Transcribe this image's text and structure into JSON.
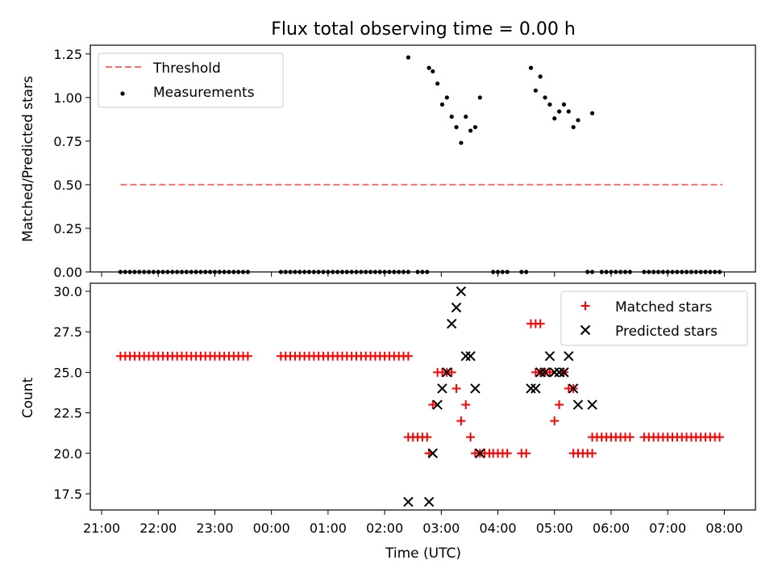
{
  "title": "Flux total observing time = 0.00 h",
  "colors": {
    "threshold": "#ff7070",
    "measurements": "#000000",
    "matched": "#ff0000",
    "predicted": "#000000"
  },
  "chart_data": [
    {
      "type": "scatter",
      "title": "Flux total observing time = 0.00 h",
      "ylabel": "Matched/Predicted stars",
      "xlabel": "",
      "xlim": [
        "21:00",
        "08:00"
      ],
      "ylim": [
        0,
        1.3
      ],
      "yticks": [
        "0.00",
        "0.25",
        "0.50",
        "0.75",
        "1.00",
        "1.25"
      ],
      "legend": {
        "placement": "top-left",
        "entries": [
          "Threshold",
          "Measurements"
        ]
      },
      "series": [
        {
          "name": "Threshold",
          "kind": "dashed-line",
          "x": [
            "21:20",
            "07:58"
          ],
          "y": [
            0.5,
            0.5
          ]
        },
        {
          "name": "Measurements",
          "kind": "scatter-dot",
          "zero_runs": [
            {
              "from": "21:20",
              "to": "23:35",
              "step_min": 5,
              "y": 0
            },
            {
              "from": "00:10",
              "to": "02:25",
              "step_min": 5,
              "y": 0
            },
            {
              "from": "02:35",
              "to": "02:45",
              "step_min": 5,
              "y": 0
            },
            {
              "from": "03:55",
              "to": "04:10",
              "step_min": 5,
              "y": 0
            },
            {
              "from": "04:25",
              "to": "04:30",
              "step_min": 5,
              "y": 0
            },
            {
              "from": "05:35",
              "to": "05:40",
              "step_min": 5,
              "y": 0
            },
            {
              "from": "05:50",
              "to": "06:20",
              "step_min": 5,
              "y": 0
            },
            {
              "from": "06:35",
              "to": "07:55",
              "step_min": 5,
              "y": 0
            }
          ],
          "points": [
            {
              "x": "02:25",
              "y": 1.23
            },
            {
              "x": "02:47",
              "y": 1.17
            },
            {
              "x": "02:51",
              "y": 1.15
            },
            {
              "x": "02:56",
              "y": 1.08
            },
            {
              "x": "03:01",
              "y": 0.96
            },
            {
              "x": "03:06",
              "y": 1.0
            },
            {
              "x": "03:11",
              "y": 0.89
            },
            {
              "x": "03:16",
              "y": 0.83
            },
            {
              "x": "03:21",
              "y": 0.74
            },
            {
              "x": "03:26",
              "y": 0.89
            },
            {
              "x": "03:31",
              "y": 0.81
            },
            {
              "x": "03:36",
              "y": 0.83
            },
            {
              "x": "03:41",
              "y": 1.0
            },
            {
              "x": "04:35",
              "y": 1.17
            },
            {
              "x": "04:40",
              "y": 1.04
            },
            {
              "x": "04:45",
              "y": 1.12
            },
            {
              "x": "04:50",
              "y": 1.0
            },
            {
              "x": "04:55",
              "y": 0.96
            },
            {
              "x": "05:00",
              "y": 0.88
            },
            {
              "x": "05:05",
              "y": 0.92
            },
            {
              "x": "05:10",
              "y": 0.96
            },
            {
              "x": "05:15",
              "y": 0.92
            },
            {
              "x": "05:20",
              "y": 0.83
            },
            {
              "x": "05:25",
              "y": 0.87
            },
            {
              "x": "05:40",
              "y": 0.91
            }
          ]
        }
      ]
    },
    {
      "type": "scatter",
      "title": "",
      "ylabel": "Count",
      "xlabel": "Time (UTC)",
      "xlim": [
        "21:00",
        "08:00"
      ],
      "ylim": [
        16.5,
        30.5
      ],
      "xticks": [
        "21:00",
        "22:00",
        "23:00",
        "00:00",
        "01:00",
        "02:00",
        "03:00",
        "04:00",
        "05:00",
        "06:00",
        "07:00",
        "08:00"
      ],
      "yticks": [
        "17.5",
        "20.0",
        "22.5",
        "25.0",
        "27.5",
        "30.0"
      ],
      "legend": {
        "placement": "top-right",
        "entries": [
          "Matched stars",
          "Predicted stars"
        ]
      },
      "series": [
        {
          "name": "Matched stars",
          "kind": "plus",
          "runs": [
            {
              "from": "21:20",
              "to": "23:35",
              "step_min": 5,
              "y": 26
            },
            {
              "from": "00:10",
              "to": "02:25",
              "step_min": 5,
              "y": 26
            },
            {
              "from": "02:25",
              "to": "02:45",
              "step_min": 5,
              "y": 21
            },
            {
              "from": "03:55",
              "to": "04:10",
              "step_min": 5,
              "y": 20
            },
            {
              "from": "04:25",
              "to": "04:30",
              "step_min": 5,
              "y": 20
            },
            {
              "from": "05:20",
              "to": "05:40",
              "step_min": 5,
              "y": 20
            },
            {
              "from": "05:40",
              "to": "06:20",
              "step_min": 5,
              "y": 21
            },
            {
              "from": "06:35",
              "to": "07:55",
              "step_min": 5,
              "y": 21
            }
          ],
          "points": [
            {
              "x": "02:47",
              "y": 20
            },
            {
              "x": "02:51",
              "y": 23
            },
            {
              "x": "02:56",
              "y": 25
            },
            {
              "x": "03:01",
              "y": 25
            },
            {
              "x": "03:06",
              "y": 25
            },
            {
              "x": "03:11",
              "y": 25
            },
            {
              "x": "03:16",
              "y": 24
            },
            {
              "x": "03:21",
              "y": 22
            },
            {
              "x": "03:26",
              "y": 23
            },
            {
              "x": "03:31",
              "y": 21
            },
            {
              "x": "03:36",
              "y": 20
            },
            {
              "x": "03:41",
              "y": 20
            },
            {
              "x": "03:46",
              "y": 20
            },
            {
              "x": "03:51",
              "y": 20
            },
            {
              "x": "04:35",
              "y": 28
            },
            {
              "x": "04:40",
              "y": 28
            },
            {
              "x": "04:45",
              "y": 28
            },
            {
              "x": "04:40",
              "y": 25
            },
            {
              "x": "04:45",
              "y": 25
            },
            {
              "x": "04:50",
              "y": 25
            },
            {
              "x": "04:55",
              "y": 25
            },
            {
              "x": "05:00",
              "y": 22
            },
            {
              "x": "05:05",
              "y": 23
            },
            {
              "x": "05:10",
              "y": 25
            },
            {
              "x": "05:15",
              "y": 24
            },
            {
              "x": "05:20",
              "y": 24
            }
          ]
        },
        {
          "name": "Predicted stars",
          "kind": "cross",
          "points": [
            {
              "x": "02:25",
              "y": 17
            },
            {
              "x": "02:47",
              "y": 17
            },
            {
              "x": "02:51",
              "y": 20
            },
            {
              "x": "02:56",
              "y": 23
            },
            {
              "x": "03:01",
              "y": 24
            },
            {
              "x": "03:06",
              "y": 25
            },
            {
              "x": "03:11",
              "y": 28
            },
            {
              "x": "03:16",
              "y": 29
            },
            {
              "x": "03:21",
              "y": 30
            },
            {
              "x": "03:26",
              "y": 26
            },
            {
              "x": "03:31",
              "y": 26
            },
            {
              "x": "03:36",
              "y": 24
            },
            {
              "x": "03:41",
              "y": 20
            },
            {
              "x": "04:35",
              "y": 24
            },
            {
              "x": "04:40",
              "y": 24
            },
            {
              "x": "04:45",
              "y": 25
            },
            {
              "x": "04:50",
              "y": 25
            },
            {
              "x": "04:55",
              "y": 26
            },
            {
              "x": "05:00",
              "y": 25
            },
            {
              "x": "05:05",
              "y": 25
            },
            {
              "x": "05:10",
              "y": 25
            },
            {
              "x": "05:15",
              "y": 26
            },
            {
              "x": "05:20",
              "y": 24
            },
            {
              "x": "05:25",
              "y": 23
            },
            {
              "x": "05:40",
              "y": 23
            }
          ]
        }
      ]
    }
  ]
}
